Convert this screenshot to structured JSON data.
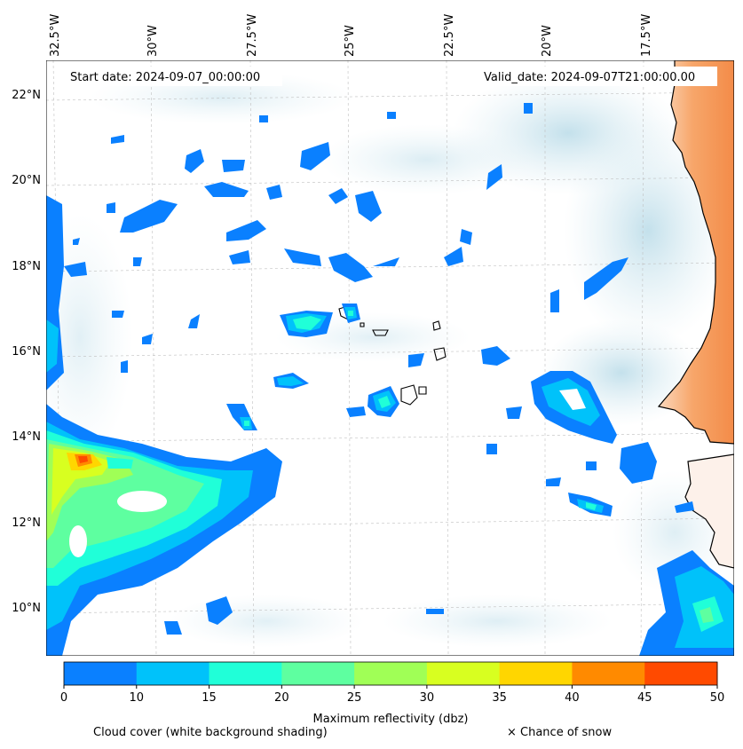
{
  "header": {
    "start_date": "Start date: 2024-09-07_00:00:00",
    "valid_date": "Valid_date: 2024-09-07T21:00:00.00"
  },
  "map": {
    "lon_labels": [
      "32.5°W",
      "30°W",
      "27.5°W",
      "25°W",
      "22.5°W",
      "20°W",
      "17.5°W"
    ],
    "lat_labels": [
      "22°N",
      "20°N",
      "18°N",
      "16°N",
      "14°N",
      "12°N",
      "10°N"
    ],
    "lon_range": [
      -32.5,
      -15.0
    ],
    "lat_range": [
      8.9,
      22.8
    ]
  },
  "colorbar": {
    "label": "Maximum reflectivity (dbz)",
    "ticks": [
      "0",
      "10",
      "15",
      "20",
      "25",
      "30",
      "35",
      "40",
      "45",
      "50"
    ],
    "colors": [
      "#0a80ff",
      "#00c2fa",
      "#20ffd8",
      "#5effa0",
      "#a0ff56",
      "#d8ff20",
      "#ffd600",
      "#ff8a00",
      "#ff4a00"
    ]
  },
  "legend": {
    "cloud_cover": "Cloud cover (white background shading)",
    "snow": "× Chance of snow"
  },
  "colors": {
    "land": "#f7a66a",
    "cloud": "#cfe6ee"
  }
}
